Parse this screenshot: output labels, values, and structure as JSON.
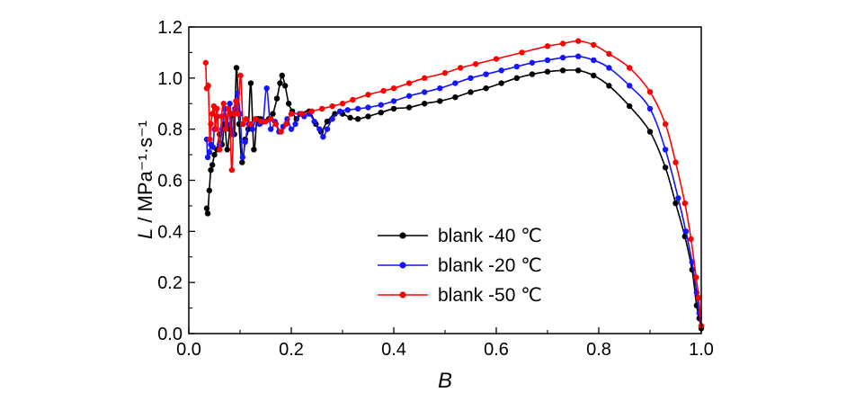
{
  "chart_data": {
    "type": "line",
    "xlabel": "B",
    "ylabel": "L / MPa⁻¹·s⁻¹",
    "xlim": [
      0.0,
      1.0
    ],
    "ylim": [
      0.0,
      1.2
    ],
    "x_ticks": [
      0.0,
      0.2,
      0.4,
      0.6,
      0.8,
      1.0
    ],
    "x_tick_labels": [
      "0.0",
      "0.2",
      "0.4",
      "0.6",
      "0.8",
      "1.0"
    ],
    "y_ticks": [
      0.0,
      0.2,
      0.4,
      0.6,
      0.8,
      1.0,
      1.2
    ],
    "y_tick_labels": [
      "0.0",
      "0.2",
      "0.4",
      "0.6",
      "0.8",
      "1.0",
      "1.2"
    ],
    "grid": false,
    "legend_position": "lower-center",
    "marker": "circle",
    "series": [
      {
        "name": "blank -40 ℃",
        "color": "#000000",
        "x": [
          0.035,
          0.037,
          0.04,
          0.043,
          0.046,
          0.05,
          0.055,
          0.06,
          0.065,
          0.07,
          0.075,
          0.08,
          0.085,
          0.089,
          0.093,
          0.098,
          0.104,
          0.11,
          0.116,
          0.121,
          0.127,
          0.133,
          0.14,
          0.148,
          0.156,
          0.164,
          0.172,
          0.178,
          0.182,
          0.188,
          0.195,
          0.202,
          0.21,
          0.22,
          0.235,
          0.248,
          0.258,
          0.27,
          0.285,
          0.3,
          0.315,
          0.33,
          0.35,
          0.375,
          0.4,
          0.43,
          0.46,
          0.49,
          0.52,
          0.55,
          0.58,
          0.61,
          0.64,
          0.67,
          0.7,
          0.73,
          0.76,
          0.79,
          0.82,
          0.86,
          0.9,
          0.93,
          0.95,
          0.968,
          0.982,
          0.991,
          0.996,
          1.0
        ],
        "y": [
          0.49,
          0.47,
          0.56,
          0.64,
          0.66,
          0.7,
          0.72,
          0.78,
          0.74,
          0.82,
          0.72,
          0.8,
          0.86,
          0.78,
          1.04,
          0.82,
          0.67,
          0.76,
          0.8,
          0.98,
          0.72,
          0.84,
          0.84,
          0.83,
          0.84,
          0.86,
          0.92,
          0.98,
          1.01,
          0.97,
          0.9,
          0.87,
          0.84,
          0.86,
          0.87,
          0.82,
          0.79,
          0.83,
          0.86,
          0.86,
          0.845,
          0.84,
          0.85,
          0.865,
          0.88,
          0.885,
          0.9,
          0.91,
          0.925,
          0.945,
          0.96,
          0.98,
          1.0,
          1.015,
          1.025,
          1.03,
          1.03,
          1.01,
          0.97,
          0.89,
          0.79,
          0.65,
          0.51,
          0.38,
          0.25,
          0.11,
          0.06,
          0.02
        ]
      },
      {
        "name": "blank -20 ℃",
        "color": "#1414ff",
        "x": [
          0.035,
          0.037,
          0.04,
          0.043,
          0.047,
          0.05,
          0.055,
          0.06,
          0.065,
          0.07,
          0.075,
          0.08,
          0.085,
          0.09,
          0.095,
          0.1,
          0.105,
          0.11,
          0.117,
          0.124,
          0.131,
          0.138,
          0.145,
          0.152,
          0.16,
          0.168,
          0.176,
          0.184,
          0.192,
          0.2,
          0.208,
          0.216,
          0.225,
          0.235,
          0.245,
          0.255,
          0.262,
          0.27,
          0.28,
          0.295,
          0.31,
          0.33,
          0.35,
          0.375,
          0.4,
          0.43,
          0.46,
          0.49,
          0.52,
          0.55,
          0.58,
          0.61,
          0.64,
          0.67,
          0.7,
          0.73,
          0.76,
          0.79,
          0.82,
          0.86,
          0.9,
          0.93,
          0.955,
          0.97,
          0.982,
          0.991,
          0.996,
          1.0
        ],
        "y": [
          0.76,
          0.69,
          0.71,
          0.74,
          0.73,
          0.8,
          0.85,
          0.74,
          0.8,
          0.88,
          0.82,
          0.9,
          0.78,
          0.88,
          0.94,
          0.86,
          0.69,
          0.75,
          0.82,
          0.8,
          0.84,
          0.82,
          0.83,
          0.96,
          0.8,
          0.83,
          0.79,
          0.81,
          0.84,
          0.8,
          0.82,
          0.86,
          0.85,
          0.86,
          0.83,
          0.8,
          0.77,
          0.8,
          0.84,
          0.87,
          0.875,
          0.88,
          0.885,
          0.895,
          0.91,
          0.93,
          0.945,
          0.96,
          0.98,
          1.0,
          1.015,
          1.03,
          1.045,
          1.06,
          1.07,
          1.08,
          1.085,
          1.07,
          1.04,
          0.97,
          0.88,
          0.72,
          0.53,
          0.4,
          0.28,
          0.16,
          0.08,
          0.03
        ]
      },
      {
        "name": "blank -50 ℃",
        "color": "#ff0000",
        "x": [
          0.033,
          0.035,
          0.038,
          0.041,
          0.043,
          0.046,
          0.049,
          0.052,
          0.055,
          0.06,
          0.064,
          0.068,
          0.072,
          0.077,
          0.08,
          0.084,
          0.088,
          0.092,
          0.096,
          0.101,
          0.106,
          0.112,
          0.12,
          0.13,
          0.14,
          0.15,
          0.16,
          0.17,
          0.18,
          0.19,
          0.2,
          0.22,
          0.24,
          0.26,
          0.28,
          0.3,
          0.32,
          0.35,
          0.38,
          0.4,
          0.43,
          0.46,
          0.5,
          0.53,
          0.56,
          0.6,
          0.65,
          0.7,
          0.73,
          0.76,
          0.79,
          0.82,
          0.86,
          0.9,
          0.93,
          0.95,
          0.968,
          0.98,
          0.99,
          0.995,
          1.0
        ],
        "y": [
          1.06,
          0.96,
          0.97,
          0.76,
          0.82,
          0.86,
          0.89,
          0.8,
          0.88,
          0.72,
          0.85,
          0.9,
          0.8,
          0.88,
          0.86,
          0.64,
          0.86,
          0.91,
          0.86,
          1.01,
          0.82,
          0.84,
          0.82,
          0.84,
          0.83,
          0.83,
          0.84,
          0.82,
          0.79,
          0.82,
          0.86,
          0.86,
          0.87,
          0.88,
          0.89,
          0.9,
          0.915,
          0.935,
          0.95,
          0.96,
          0.98,
          1.0,
          1.02,
          1.04,
          1.055,
          1.075,
          1.1,
          1.125,
          1.135,
          1.145,
          1.13,
          1.095,
          1.04,
          0.946,
          0.82,
          0.67,
          0.51,
          0.37,
          0.22,
          0.14,
          0.03
        ]
      }
    ]
  }
}
